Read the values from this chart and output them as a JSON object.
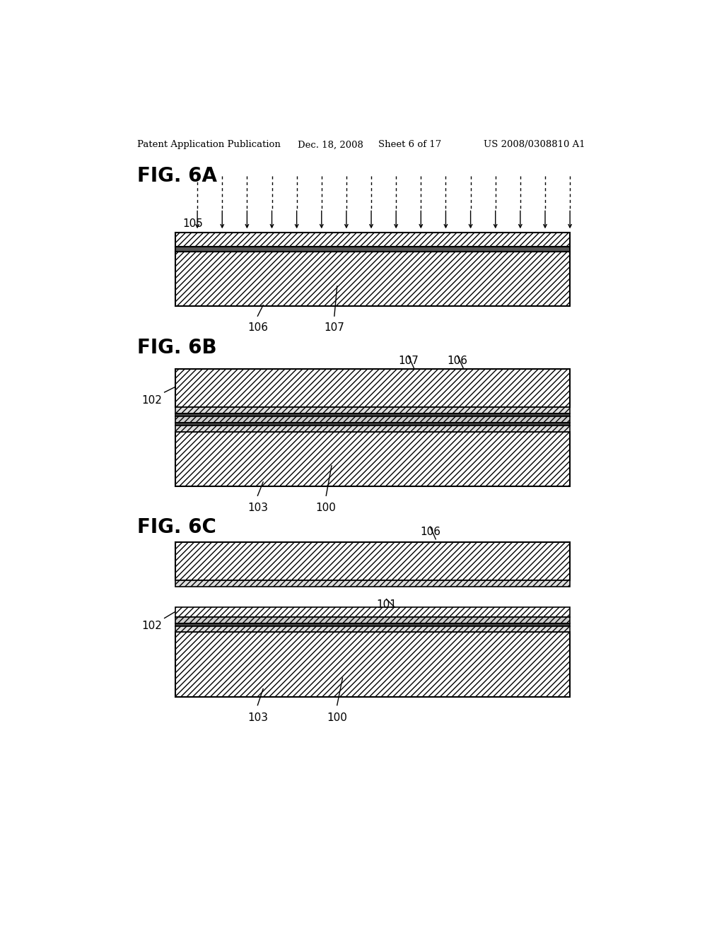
{
  "bg_color": "#ffffff",
  "header_text": "Patent Application Publication",
  "header_date": "Dec. 18, 2008",
  "header_sheet": "Sheet 6 of 17",
  "header_patent": "US 2008/0308810 A1",
  "fig6a_label": "FIG. 6A",
  "fig6b_label": "FIG. 6B",
  "fig6c_label": "FIG. 6C"
}
